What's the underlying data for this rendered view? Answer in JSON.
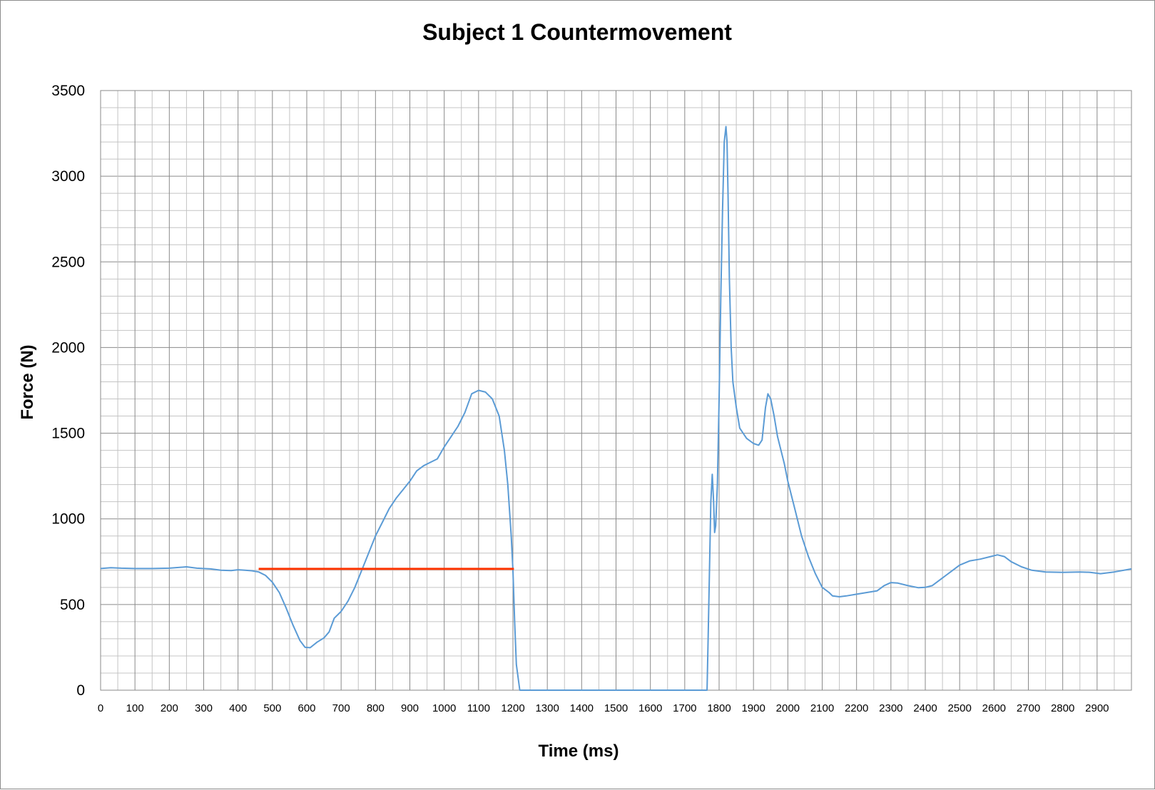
{
  "chart_data": {
    "type": "line",
    "title": "Subject 1 Countermovement",
    "xlabel": "Time (ms)",
    "ylabel": "Force (N)",
    "xlim": [
      0,
      3000
    ],
    "ylim": [
      0,
      3500
    ],
    "x_ticks": [
      "0",
      "100",
      "200",
      "300",
      "400",
      "500",
      "600",
      "700",
      "800",
      "900",
      "1000",
      "1100",
      "1200",
      "1300",
      "1400",
      "1500",
      "1600",
      "1700",
      "1800",
      "1900",
      "2000",
      "2100",
      "2200",
      "2300",
      "2400",
      "2500",
      "2600",
      "2700",
      "2800",
      "2900"
    ],
    "y_ticks": [
      "0",
      "500",
      "1000",
      "1500",
      "2000",
      "2500",
      "3000",
      "3500"
    ],
    "grid": true,
    "legend": "none",
    "series": [
      {
        "color": "#5b9bd5",
        "points": [
          [
            0,
            710
          ],
          [
            30,
            715
          ],
          [
            60,
            712
          ],
          [
            100,
            710
          ],
          [
            150,
            710
          ],
          [
            200,
            712
          ],
          [
            250,
            720
          ],
          [
            280,
            712
          ],
          [
            320,
            708
          ],
          [
            350,
            700
          ],
          [
            380,
            698
          ],
          [
            400,
            703
          ],
          [
            420,
            700
          ],
          [
            440,
            697
          ],
          [
            460,
            690
          ],
          [
            480,
            670
          ],
          [
            500,
            630
          ],
          [
            520,
            570
          ],
          [
            540,
            480
          ],
          [
            560,
            380
          ],
          [
            580,
            290
          ],
          [
            595,
            250
          ],
          [
            610,
            248
          ],
          [
            630,
            280
          ],
          [
            650,
            305
          ],
          [
            665,
            340
          ],
          [
            680,
            420
          ],
          [
            700,
            460
          ],
          [
            720,
            520
          ],
          [
            740,
            600
          ],
          [
            760,
            700
          ],
          [
            780,
            800
          ],
          [
            800,
            900
          ],
          [
            820,
            980
          ],
          [
            840,
            1060
          ],
          [
            860,
            1120
          ],
          [
            880,
            1170
          ],
          [
            900,
            1220
          ],
          [
            920,
            1280
          ],
          [
            940,
            1310
          ],
          [
            960,
            1330
          ],
          [
            980,
            1350
          ],
          [
            1000,
            1420
          ],
          [
            1020,
            1480
          ],
          [
            1040,
            1540
          ],
          [
            1060,
            1620
          ],
          [
            1080,
            1730
          ],
          [
            1100,
            1750
          ],
          [
            1120,
            1740
          ],
          [
            1140,
            1700
          ],
          [
            1160,
            1600
          ],
          [
            1175,
            1400
          ],
          [
            1185,
            1200
          ],
          [
            1195,
            900
          ],
          [
            1200,
            700
          ],
          [
            1205,
            400
          ],
          [
            1210,
            150
          ],
          [
            1220,
            0
          ],
          [
            1300,
            0
          ],
          [
            1400,
            0
          ],
          [
            1500,
            0
          ],
          [
            1600,
            0
          ],
          [
            1700,
            0
          ],
          [
            1765,
            0
          ],
          [
            1768,
            300
          ],
          [
            1772,
            700
          ],
          [
            1776,
            1100
          ],
          [
            1780,
            1260
          ],
          [
            1784,
            1100
          ],
          [
            1787,
            920
          ],
          [
            1790,
            960
          ],
          [
            1795,
            1200
          ],
          [
            1800,
            1700
          ],
          [
            1805,
            2300
          ],
          [
            1810,
            2800
          ],
          [
            1815,
            3200
          ],
          [
            1820,
            3290
          ],
          [
            1823,
            3200
          ],
          [
            1826,
            2900
          ],
          [
            1830,
            2400
          ],
          [
            1835,
            2000
          ],
          [
            1840,
            1800
          ],
          [
            1850,
            1650
          ],
          [
            1860,
            1530
          ],
          [
            1880,
            1470
          ],
          [
            1900,
            1440
          ],
          [
            1915,
            1430
          ],
          [
            1925,
            1460
          ],
          [
            1935,
            1650
          ],
          [
            1942,
            1730
          ],
          [
            1950,
            1700
          ],
          [
            1960,
            1600
          ],
          [
            1970,
            1480
          ],
          [
            1990,
            1320
          ],
          [
            2000,
            1220
          ],
          [
            2020,
            1060
          ],
          [
            2040,
            900
          ],
          [
            2060,
            780
          ],
          [
            2080,
            680
          ],
          [
            2100,
            600
          ],
          [
            2120,
            570
          ],
          [
            2130,
            550
          ],
          [
            2150,
            545
          ],
          [
            2170,
            550
          ],
          [
            2200,
            560
          ],
          [
            2230,
            570
          ],
          [
            2260,
            580
          ],
          [
            2280,
            610
          ],
          [
            2300,
            628
          ],
          [
            2320,
            625
          ],
          [
            2350,
            610
          ],
          [
            2380,
            598
          ],
          [
            2400,
            600
          ],
          [
            2420,
            610
          ],
          [
            2440,
            640
          ],
          [
            2460,
            670
          ],
          [
            2480,
            700
          ],
          [
            2500,
            730
          ],
          [
            2530,
            755
          ],
          [
            2560,
            765
          ],
          [
            2590,
            780
          ],
          [
            2610,
            790
          ],
          [
            2630,
            780
          ],
          [
            2650,
            750
          ],
          [
            2680,
            720
          ],
          [
            2710,
            700
          ],
          [
            2750,
            690
          ],
          [
            2800,
            688
          ],
          [
            2850,
            690
          ],
          [
            2880,
            688
          ],
          [
            2910,
            680
          ],
          [
            2950,
            690
          ],
          [
            3000,
            708
          ]
        ]
      },
      {
        "color": "#ff3300",
        "points": [
          [
            460,
            708
          ],
          [
            1203,
            708
          ]
        ]
      }
    ]
  }
}
